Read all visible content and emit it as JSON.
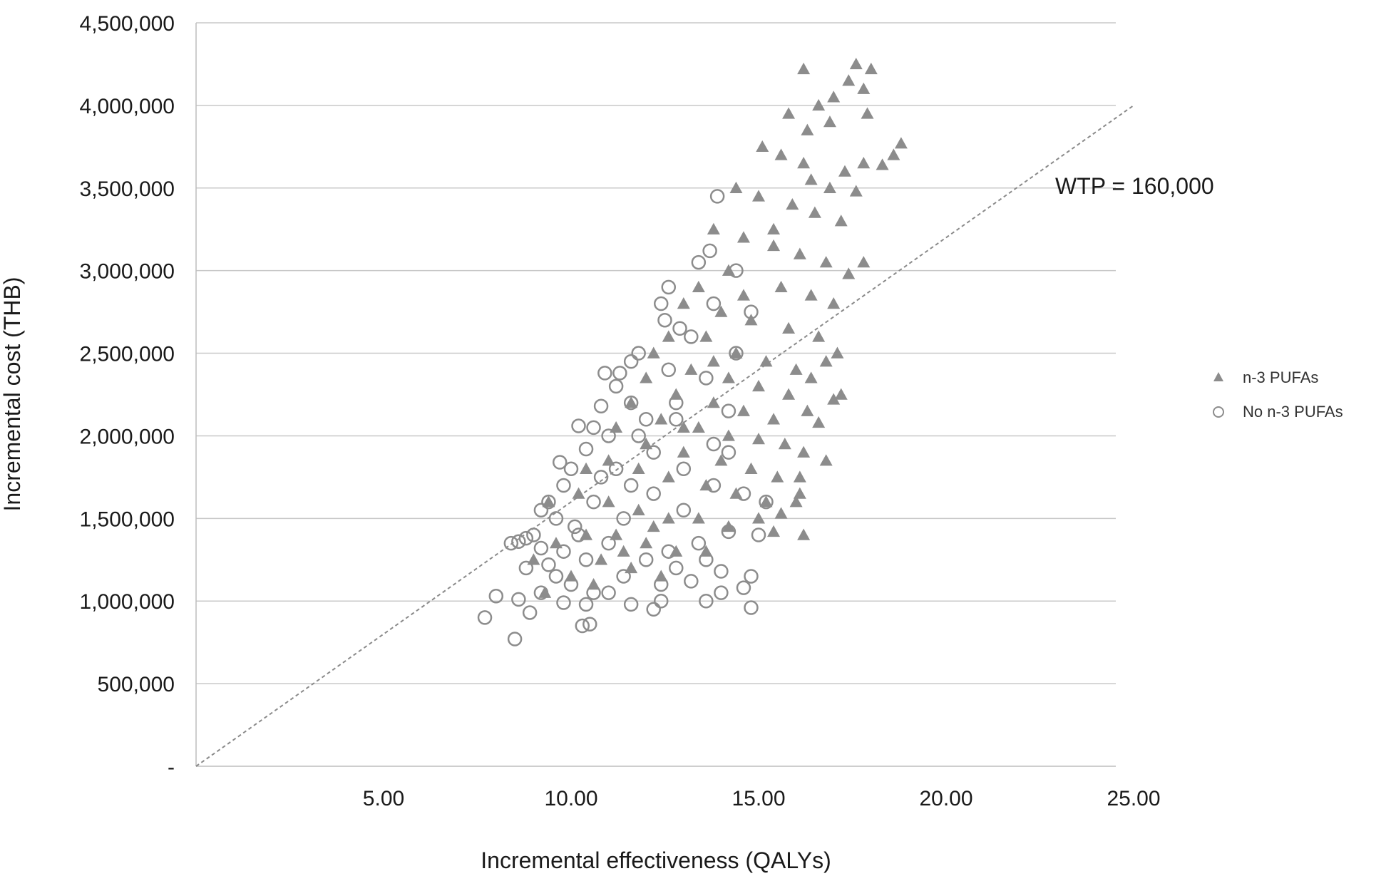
{
  "chart_data": {
    "type": "scatter",
    "title": "",
    "xlabel": "Incremental effectiveness (QALYs)",
    "ylabel": "Incremental cost (THB)",
    "xlim": [
      0,
      25
    ],
    "ylim": [
      0,
      4500000
    ],
    "x_ticks": [
      {
        "value": 5,
        "label": "5.00"
      },
      {
        "value": 10,
        "label": "10.00"
      },
      {
        "value": 15,
        "label": "15.00"
      },
      {
        "value": 20,
        "label": "20.00"
      },
      {
        "value": 25,
        "label": "25.00"
      }
    ],
    "y_ticks": [
      {
        "value": 0,
        "label": "-"
      },
      {
        "value": 500000,
        "label": "500,000"
      },
      {
        "value": 1000000,
        "label": "1,000,000"
      },
      {
        "value": 1500000,
        "label": "1,500,000"
      },
      {
        "value": 2000000,
        "label": "2,000,000"
      },
      {
        "value": 2500000,
        "label": "2,500,000"
      },
      {
        "value": 3000000,
        "label": "3,000,000"
      },
      {
        "value": 3500000,
        "label": "3,500,000"
      },
      {
        "value": 4000000,
        "label": "4,000,000"
      },
      {
        "value": 4500000,
        "label": "4,500,000"
      }
    ],
    "grid": "horizontal",
    "legend_position": "right",
    "wtp_line": {
      "label": "WTP = 160,000",
      "slope": 160000
    },
    "colors": {
      "points": "#8c8c8c",
      "grid": "#c8c8c8",
      "wtp": "#888888"
    },
    "series": [
      {
        "name": "n-3 PUFAs",
        "marker": "triangle",
        "points": [
          [
            17.6,
            4250000
          ],
          [
            18.0,
            4220000
          ],
          [
            16.2,
            4220000
          ],
          [
            17.8,
            4100000
          ],
          [
            17.4,
            4150000
          ],
          [
            17.0,
            4050000
          ],
          [
            16.6,
            4000000
          ],
          [
            17.9,
            3950000
          ],
          [
            15.8,
            3950000
          ],
          [
            16.9,
            3900000
          ],
          [
            16.3,
            3850000
          ],
          [
            18.8,
            3770000
          ],
          [
            18.6,
            3700000
          ],
          [
            18.3,
            3640000
          ],
          [
            17.8,
            3650000
          ],
          [
            15.1,
            3750000
          ],
          [
            15.6,
            3700000
          ],
          [
            17.3,
            3600000
          ],
          [
            16.4,
            3550000
          ],
          [
            16.9,
            3500000
          ],
          [
            17.6,
            3480000
          ],
          [
            14.4,
            3500000
          ],
          [
            15.0,
            3450000
          ],
          [
            15.9,
            3400000
          ],
          [
            16.5,
            3350000
          ],
          [
            17.2,
            3300000
          ],
          [
            13.8,
            3250000
          ],
          [
            14.6,
            3200000
          ],
          [
            15.4,
            3150000
          ],
          [
            16.1,
            3100000
          ],
          [
            16.8,
            3050000
          ],
          [
            17.8,
            3050000
          ],
          [
            17.4,
            2980000
          ],
          [
            14.2,
            3000000
          ],
          [
            13.4,
            2900000
          ],
          [
            15.6,
            2900000
          ],
          [
            16.4,
            2850000
          ],
          [
            17.0,
            2800000
          ],
          [
            13.0,
            2800000
          ],
          [
            14.0,
            2750000
          ],
          [
            14.8,
            2700000
          ],
          [
            15.8,
            2650000
          ],
          [
            16.6,
            2600000
          ],
          [
            17.1,
            2500000
          ],
          [
            16.8,
            2450000
          ],
          [
            13.6,
            2600000
          ],
          [
            12.6,
            2600000
          ],
          [
            14.4,
            2500000
          ],
          [
            15.2,
            2450000
          ],
          [
            16.0,
            2400000
          ],
          [
            16.4,
            2350000
          ],
          [
            12.2,
            2500000
          ],
          [
            13.2,
            2400000
          ],
          [
            14.2,
            2350000
          ],
          [
            15.0,
            2300000
          ],
          [
            15.8,
            2250000
          ],
          [
            17.2,
            2250000
          ],
          [
            17.0,
            2220000
          ],
          [
            16.3,
            2150000
          ],
          [
            12.0,
            2350000
          ],
          [
            12.8,
            2250000
          ],
          [
            13.8,
            2200000
          ],
          [
            14.6,
            2150000
          ],
          [
            15.4,
            2100000
          ],
          [
            16.6,
            2080000
          ],
          [
            11.6,
            2200000
          ],
          [
            12.4,
            2100000
          ],
          [
            13.4,
            2050000
          ],
          [
            14.2,
            2000000
          ],
          [
            15.0,
            1980000
          ],
          [
            15.7,
            1950000
          ],
          [
            16.2,
            1900000
          ],
          [
            16.8,
            1850000
          ],
          [
            11.2,
            2050000
          ],
          [
            12.0,
            1950000
          ],
          [
            13.0,
            1900000
          ],
          [
            14.0,
            1850000
          ],
          [
            14.8,
            1800000
          ],
          [
            15.5,
            1750000
          ],
          [
            16.1,
            1750000
          ],
          [
            10.4,
            1800000
          ],
          [
            11.0,
            1850000
          ],
          [
            11.8,
            1800000
          ],
          [
            12.6,
            1750000
          ],
          [
            13.6,
            1700000
          ],
          [
            14.4,
            1650000
          ],
          [
            15.2,
            1600000
          ],
          [
            16.1,
            1650000
          ],
          [
            16.0,
            1600000
          ],
          [
            9.4,
            1600000
          ],
          [
            10.2,
            1650000
          ],
          [
            11.0,
            1600000
          ],
          [
            11.8,
            1550000
          ],
          [
            12.6,
            1500000
          ],
          [
            13.4,
            1500000
          ],
          [
            14.2,
            1450000
          ],
          [
            15.0,
            1500000
          ],
          [
            15.6,
            1530000
          ],
          [
            15.4,
            1420000
          ],
          [
            16.2,
            1400000
          ],
          [
            9.0,
            1250000
          ],
          [
            9.6,
            1350000
          ],
          [
            10.4,
            1400000
          ],
          [
            11.2,
            1400000
          ],
          [
            12.0,
            1350000
          ],
          [
            12.8,
            1300000
          ],
          [
            13.6,
            1300000
          ],
          [
            10.8,
            1250000
          ],
          [
            11.6,
            1200000
          ],
          [
            12.4,
            1150000
          ],
          [
            9.3,
            1050000
          ],
          [
            10.0,
            1150000
          ],
          [
            10.6,
            1100000
          ],
          [
            11.4,
            1300000
          ],
          [
            12.2,
            1450000
          ],
          [
            13.0,
            2050000
          ],
          [
            13.8,
            2450000
          ],
          [
            14.6,
            2850000
          ],
          [
            15.4,
            3250000
          ],
          [
            16.2,
            3650000
          ]
        ]
      },
      {
        "name": "No n-3 PUFAs",
        "marker": "circle",
        "points": [
          [
            13.9,
            3450000
          ],
          [
            13.7,
            3120000
          ],
          [
            13.4,
            3050000
          ],
          [
            12.6,
            2900000
          ],
          [
            12.4,
            2800000
          ],
          [
            12.5,
            2700000
          ],
          [
            12.9,
            2650000
          ],
          [
            11.8,
            2500000
          ],
          [
            11.6,
            2450000
          ],
          [
            11.3,
            2380000
          ],
          [
            10.9,
            2380000
          ],
          [
            11.2,
            2300000
          ],
          [
            11.6,
            2200000
          ],
          [
            10.8,
            2180000
          ],
          [
            10.6,
            2050000
          ],
          [
            10.2,
            2060000
          ],
          [
            11.0,
            2000000
          ],
          [
            10.4,
            1920000
          ],
          [
            9.7,
            1840000
          ],
          [
            10.0,
            1800000
          ],
          [
            10.8,
            1750000
          ],
          [
            9.8,
            1700000
          ],
          [
            9.4,
            1600000
          ],
          [
            9.2,
            1550000
          ],
          [
            9.6,
            1500000
          ],
          [
            10.1,
            1450000
          ],
          [
            9.0,
            1400000
          ],
          [
            8.8,
            1380000
          ],
          [
            8.6,
            1360000
          ],
          [
            9.2,
            1320000
          ],
          [
            8.4,
            1350000
          ],
          [
            9.8,
            1300000
          ],
          [
            10.4,
            1250000
          ],
          [
            9.4,
            1220000
          ],
          [
            8.8,
            1200000
          ],
          [
            9.6,
            1150000
          ],
          [
            10.0,
            1100000
          ],
          [
            10.6,
            1050000
          ],
          [
            9.2,
            1050000
          ],
          [
            8.0,
            1030000
          ],
          [
            8.6,
            1010000
          ],
          [
            9.8,
            990000
          ],
          [
            10.4,
            980000
          ],
          [
            8.9,
            930000
          ],
          [
            7.7,
            900000
          ],
          [
            10.3,
            850000
          ],
          [
            10.5,
            860000
          ],
          [
            8.5,
            770000
          ],
          [
            11.6,
            980000
          ],
          [
            12.2,
            950000
          ],
          [
            12.4,
            1000000
          ],
          [
            13.6,
            1000000
          ],
          [
            14.0,
            1050000
          ],
          [
            14.6,
            1080000
          ],
          [
            14.8,
            1150000
          ],
          [
            14.0,
            1180000
          ],
          [
            14.8,
            960000
          ],
          [
            13.2,
            1120000
          ],
          [
            12.8,
            1200000
          ],
          [
            12.0,
            1250000
          ],
          [
            11.4,
            1150000
          ],
          [
            11.0,
            1050000
          ],
          [
            12.6,
            1300000
          ],
          [
            13.4,
            1350000
          ],
          [
            14.2,
            1420000
          ],
          [
            15.0,
            1400000
          ],
          [
            15.2,
            1600000
          ],
          [
            14.6,
            1650000
          ],
          [
            13.8,
            1700000
          ],
          [
            13.0,
            1800000
          ],
          [
            12.2,
            1900000
          ],
          [
            12.0,
            2100000
          ],
          [
            12.8,
            2200000
          ],
          [
            13.6,
            2350000
          ],
          [
            14.4,
            2500000
          ],
          [
            13.2,
            2600000
          ],
          [
            12.6,
            2400000
          ],
          [
            11.8,
            2000000
          ],
          [
            11.2,
            1800000
          ],
          [
            10.6,
            1600000
          ],
          [
            10.2,
            1400000
          ],
          [
            11.4,
            1500000
          ],
          [
            12.2,
            1650000
          ],
          [
            13.0,
            1550000
          ],
          [
            13.8,
            1950000
          ],
          [
            14.2,
            2150000
          ],
          [
            14.8,
            2750000
          ],
          [
            14.4,
            3000000
          ],
          [
            13.8,
            2800000
          ],
          [
            12.8,
            2100000
          ],
          [
            11.6,
            1700000
          ],
          [
            11.0,
            1350000
          ],
          [
            12.4,
            1100000
          ],
          [
            13.6,
            1250000
          ],
          [
            14.2,
            1900000
          ]
        ]
      }
    ]
  }
}
